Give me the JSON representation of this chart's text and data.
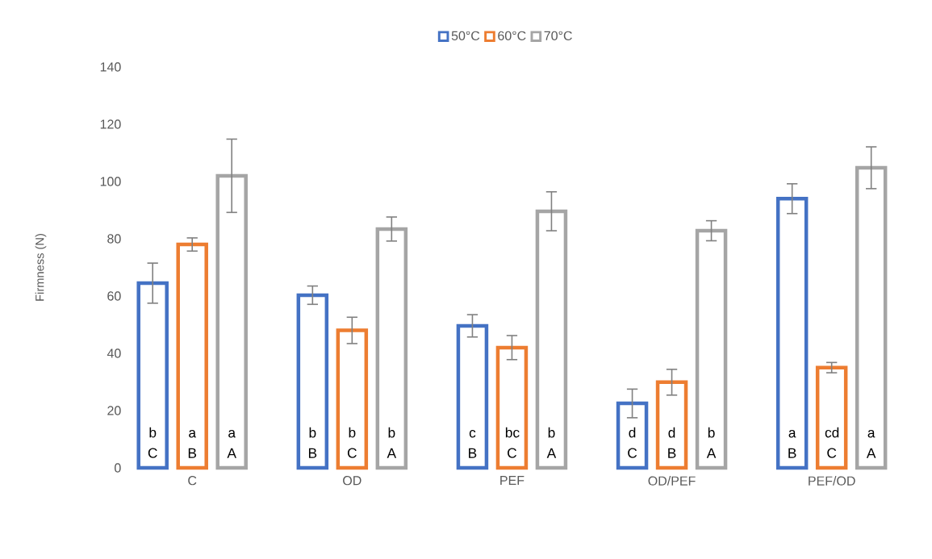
{
  "chart_data": {
    "type": "bar",
    "ylabel": "Firmness (N)",
    "categories": [
      "C",
      "OD",
      "PEF",
      "OD/PEF",
      "PEF/OD"
    ],
    "series": [
      {
        "name": "50°C",
        "color": "#4472c4",
        "values": [
          64.5,
          60.3,
          49.6,
          22.5,
          94
        ],
        "errors": [
          7,
          3.2,
          3.9,
          5,
          5.2
        ],
        "value_labels": [
          "b C",
          "b B",
          "c B",
          "d C",
          "a B"
        ]
      },
      {
        "name": "60°C",
        "color": "#ed7d31",
        "values": [
          78,
          48,
          42,
          29.9,
          35
        ],
        "errors": [
          2.3,
          4.6,
          4.2,
          4.5,
          1.8
        ],
        "value_labels": [
          "a B",
          "b C",
          "bc C",
          "d B",
          "cd C"
        ]
      },
      {
        "name": "70°C",
        "color": "#a5a5a5",
        "values": [
          102,
          83.4,
          89.6,
          82.8,
          104.8
        ],
        "errors": [
          12.8,
          4.2,
          6.8,
          3.5,
          7.3
        ],
        "value_labels": [
          "a A",
          "b A",
          "b A",
          "b A",
          "a A"
        ]
      }
    ],
    "ylim": [
      0,
      140
    ],
    "yticks": [
      0,
      20,
      40,
      60,
      80,
      100,
      120,
      140
    ],
    "legend": "top",
    "grid": false
  }
}
